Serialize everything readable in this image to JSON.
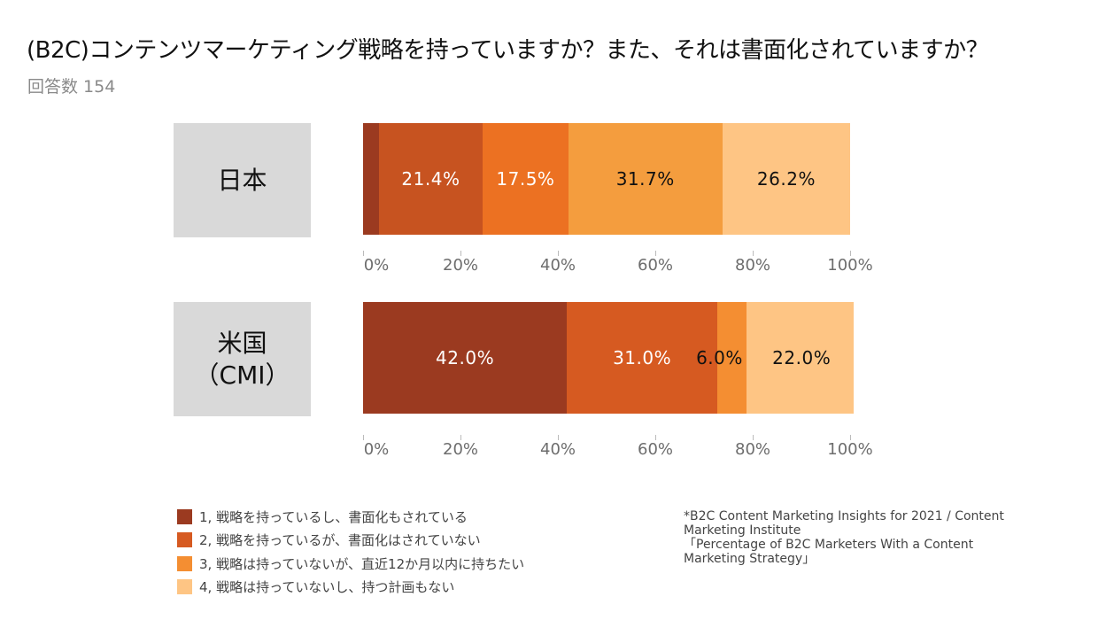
{
  "header": {
    "title": "(B2C)コンテンツマーケティング戦略を持っていますか？また、それは書面化されていますか？",
    "subtitle": "回答数 154"
  },
  "chart_data": {
    "type": "bar",
    "orientation": "horizontal",
    "stacked": true,
    "title": "(B2C)コンテンツマーケティング戦略を持っていますか？また、それは書面化されていますか？",
    "subtitle": "回答数 154",
    "xlabel": "",
    "ylabel": "",
    "xlim": [
      0,
      100
    ],
    "x_ticks": [
      "0%",
      "20%",
      "40%",
      "60%",
      "80%",
      "100%"
    ],
    "categories": [
      "日本",
      "米国\n（CMI）"
    ],
    "category_lines": [
      [
        "日本"
      ],
      [
        "米国",
        "（CMI）"
      ]
    ],
    "series": [
      {
        "name": "1, 戦略を持っているし、書面化もされている",
        "color": "#9b3a20",
        "values": [
          3.2,
          42.0
        ],
        "labels": [
          "",
          "42.0%"
        ],
        "label_colors": [
          "#ffffff",
          "#ffffff"
        ]
      },
      {
        "name": "2, 戦略を持っているが、書面化はされていない",
        "color": "#c75320",
        "values": [
          21.4,
          31.0
        ],
        "labels": [
          "21.4%",
          "31.0%"
        ],
        "label_colors": [
          "#ffffff",
          "#ffffff"
        ]
      },
      {
        "name": "3, 戦略は持っていないが、直近12か月以内に持ちたい",
        "color": "#ec7122",
        "values": [
          17.5,
          6.0
        ],
        "labels": [
          "17.5%",
          "6.0%"
        ],
        "label_colors": [
          "#ffffff",
          "#111111"
        ]
      },
      {
        "name": "4, 戦略は持っていないし、持つ計画もない",
        "color": "#f49d3e",
        "values": [
          31.7,
          22.0
        ],
        "labels": [
          "31.7%",
          "22.0%"
        ],
        "label_colors": [
          "#111111",
          "#111111"
        ]
      },
      {
        "name": "",
        "color": "#fec584",
        "values": [
          26.2,
          0
        ],
        "labels": [
          "26.2%",
          ""
        ],
        "label_colors": [
          "#111111",
          "#111111"
        ]
      }
    ],
    "bar_colors_us": [
      "#9b3a20",
      "#d65a21",
      "#f48e32",
      "#fec584"
    ],
    "legend_position": "bottom-left",
    "grid": false
  },
  "legend": {
    "items": [
      {
        "label": "1, 戦略を持っているし、書面化もされている",
        "color": "#9b3a20"
      },
      {
        "label": "2, 戦略を持っているが、書面化はされていない",
        "color": "#d65a21"
      },
      {
        "label": "3, 戦略は持っていないが、直近12か月以内に持ちたい",
        "color": "#f48e32"
      },
      {
        "label": "4, 戦略は持っていないし、持つ計画もない",
        "color": "#fec584"
      }
    ]
  },
  "source": {
    "lines": [
      "*B2C Content Marketing Insights for 2021 / Content",
      "Marketing Institute",
      "「Percentage of B2C Marketers With a Content",
      "Marketing Strategy」"
    ]
  }
}
